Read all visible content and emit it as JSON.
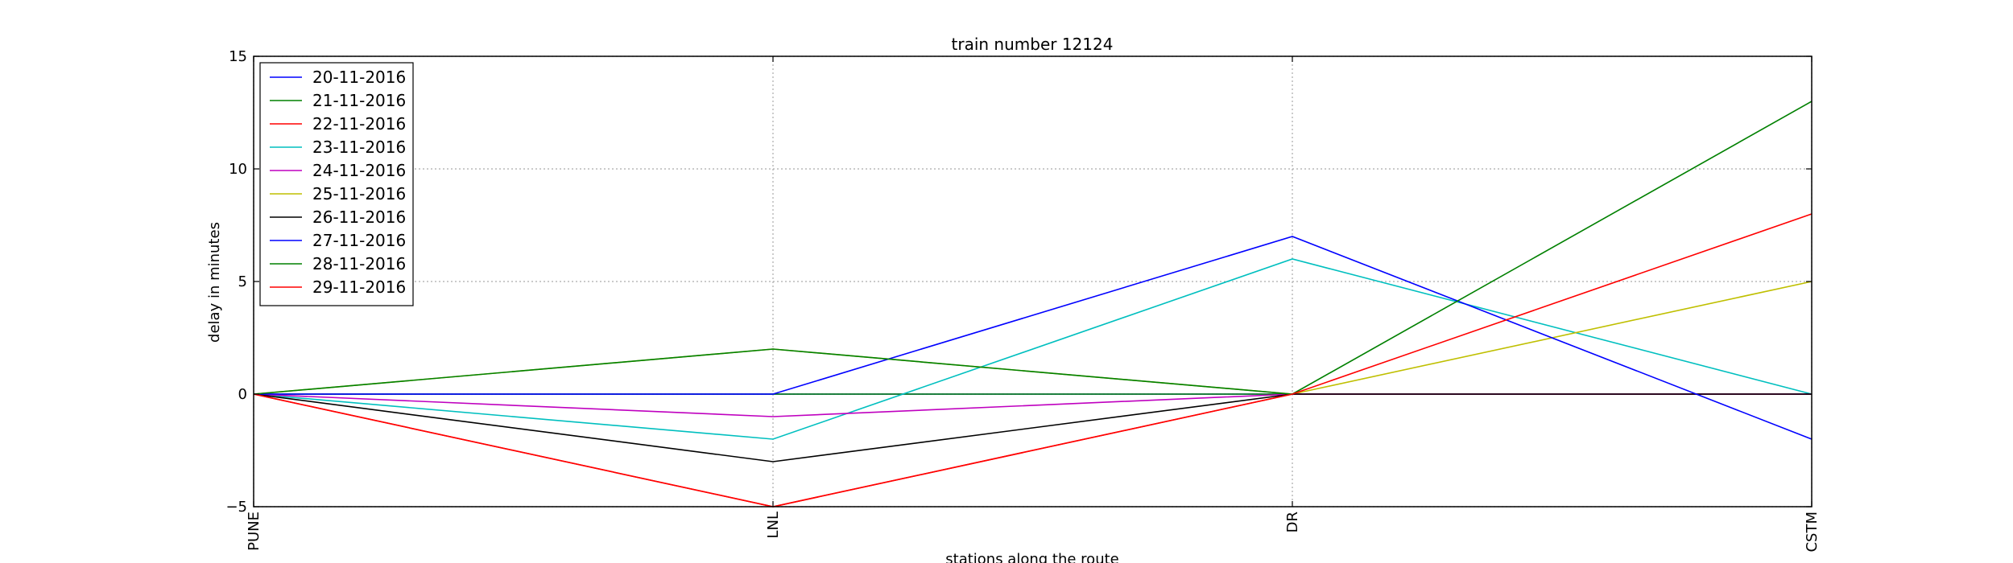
{
  "chart_data": {
    "type": "line",
    "title": "train number 12124",
    "xlabel": "stations along the route",
    "ylabel": "delay in minutes",
    "categories": [
      "PUNE",
      "LNL",
      "DR",
      "CSTM"
    ],
    "ylim": [
      -5,
      15
    ],
    "yticks": [
      -5,
      0,
      5,
      10,
      15
    ],
    "grid": true,
    "legend_position": "top-left",
    "series": [
      {
        "name": "20-11-2016",
        "color": "#0000ff",
        "values": [
          0,
          0,
          0,
          0
        ]
      },
      {
        "name": "21-11-2016",
        "color": "#008000",
        "values": [
          0,
          0,
          0,
          0
        ]
      },
      {
        "name": "22-11-2016",
        "color": "#ff0000",
        "values": [
          0,
          -5,
          0,
          0
        ]
      },
      {
        "name": "23-11-2016",
        "color": "#00bfbf",
        "values": [
          0,
          -2,
          6,
          0
        ]
      },
      {
        "name": "24-11-2016",
        "color": "#bf00bf",
        "values": [
          0,
          -1,
          0,
          0
        ]
      },
      {
        "name": "25-11-2016",
        "color": "#bfbf00",
        "values": [
          0,
          2,
          0,
          5
        ]
      },
      {
        "name": "26-11-2016",
        "color": "#000000",
        "values": [
          0,
          -3,
          0,
          0
        ]
      },
      {
        "name": "27-11-2016",
        "color": "#0000ff",
        "values": [
          0,
          0,
          7,
          -2
        ]
      },
      {
        "name": "28-11-2016",
        "color": "#008000",
        "values": [
          0,
          2,
          0,
          13
        ]
      },
      {
        "name": "29-11-2016",
        "color": "#ff0000",
        "values": [
          0,
          -5,
          0,
          8
        ]
      }
    ]
  }
}
